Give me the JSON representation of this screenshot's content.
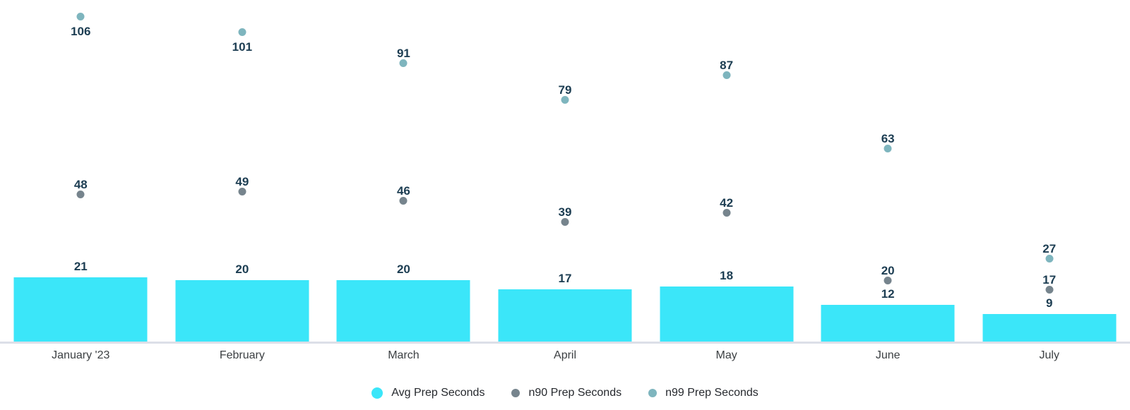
{
  "chart_data": {
    "type": "bar",
    "subtype": "bar-with-point-series",
    "title": "",
    "xlabel": "",
    "ylabel": "",
    "categories": [
      "January '23",
      "February",
      "March",
      "April",
      "May",
      "June",
      "July"
    ],
    "series": [
      {
        "name": "Avg Prep Seconds",
        "type": "bar",
        "color": "#3BE6F9",
        "values": [
          21,
          20,
          20,
          17,
          18,
          12,
          9
        ]
      },
      {
        "name": "n90 Prep Seconds",
        "type": "point",
        "color": "#76848D",
        "values": [
          48,
          49,
          46,
          39,
          42,
          20,
          17
        ]
      },
      {
        "name": "n99 Prep Seconds",
        "type": "point",
        "color": "#7EB5BE",
        "values": [
          106,
          101,
          91,
          79,
          87,
          63,
          27
        ],
        "label_below": [
          true,
          true,
          false,
          false,
          false,
          false,
          false
        ]
      }
    ],
    "ylim": [
      0,
      111.5
    ],
    "grid": false,
    "value_labels_shown": true,
    "legend_position": "bottom",
    "colors": {
      "background": "#FFFFFF",
      "value_label": "#1C3D52",
      "axis_label": "#3C4043",
      "axis_line": "#DCDFE8",
      "legend_text": "#26292E"
    }
  }
}
